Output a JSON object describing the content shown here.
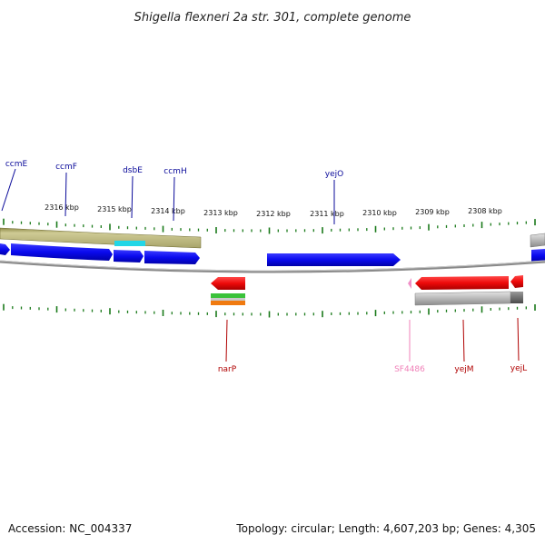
{
  "header": {
    "title": "Shigella flexneri 2a str. 301, complete genome"
  },
  "footer": {
    "accession": "Accession: NC_004337",
    "summary": "Topology: circular; Length: 4,607,203 bp; Genes: 4,305"
  },
  "colors": {
    "forward_gene": "#0a0aee",
    "reverse_gene": "#ee0a0a",
    "pseudo_gene": "#f090c8",
    "label_forward": "#0a0a9a",
    "label_reverse": "#b00000",
    "label_pseudo": "#f080b8",
    "tick": "#1a7a1a",
    "backbone": "#8a8a8a",
    "cds_band": "#b8b47a",
    "highlight": "#22d6e6",
    "gray_band": "#aaaaaa"
  },
  "axis": {
    "ticks": [
      "2316 kbp",
      "2315 kbp",
      "2314 kbp",
      "2313 kbp",
      "2312 kbp",
      "2311 kbp",
      "2310 kbp",
      "2309 kbp",
      "2308 kbp"
    ]
  },
  "genes": {
    "forward": [
      "ccmE",
      "ccmF",
      "dsbE",
      "ccmH",
      "yejO"
    ],
    "reverse": [
      "narP",
      "SF4486",
      "yejM",
      "yejL"
    ]
  }
}
